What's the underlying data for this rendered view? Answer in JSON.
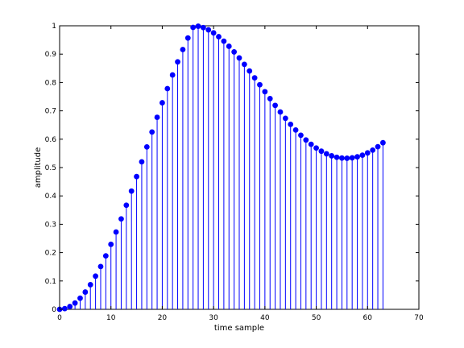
{
  "chart_data": {
    "type": "stem",
    "title": "",
    "xlabel": "time sample",
    "ylabel": "amplitude",
    "xlim": [
      0,
      70
    ],
    "ylim": [
      0,
      1
    ],
    "xticks": [
      0,
      10,
      20,
      30,
      40,
      50,
      60,
      70
    ],
    "yticks": [
      0,
      0.1,
      0.2,
      0.3,
      0.4,
      0.5,
      0.6,
      0.7,
      0.8,
      0.9,
      1
    ],
    "xtick_labels": [
      "0",
      "10",
      "20",
      "30",
      "40",
      "50",
      "60",
      "70"
    ],
    "ytick_labels": [
      "0",
      "0.1",
      "0.2",
      "0.3",
      "0.4",
      "0.5",
      "0.6",
      "0.7",
      "0.8",
      "0.9",
      "1"
    ],
    "grid": false,
    "color": "#0000ff",
    "x": [
      0,
      1,
      2,
      3,
      4,
      5,
      6,
      7,
      8,
      9,
      10,
      11,
      12,
      13,
      14,
      15,
      16,
      17,
      18,
      19,
      20,
      21,
      22,
      23,
      24,
      25,
      26,
      27,
      28,
      29,
      30,
      31,
      32,
      33,
      34,
      35,
      36,
      37,
      38,
      39,
      40,
      41,
      42,
      43,
      44,
      45,
      46,
      47,
      48,
      49,
      50,
      51,
      52,
      53,
      54,
      55,
      56,
      57,
      58,
      59,
      60,
      61,
      62,
      63
    ],
    "y": [
      0,
      0.0025,
      0.0099,
      0.0222,
      0.0393,
      0.0609,
      0.0869,
      0.117,
      0.151,
      0.1885,
      0.2292,
      0.2728,
      0.3189,
      0.3671,
      0.417,
      0.4682,
      0.5203,
      0.5728,
      0.6253,
      0.6773,
      0.7285,
      0.7784,
      0.8266,
      0.8727,
      0.9162,
      0.9569,
      0.9944,
      0.9984,
      0.9936,
      0.9857,
      0.9749,
      0.9615,
      0.9457,
      0.9277,
      0.9079,
      0.8866,
      0.864,
      0.8406,
      0.8165,
      0.792,
      0.7675,
      0.7431,
      0.7192,
      0.696,
      0.6736,
      0.6524,
      0.6325,
      0.614,
      0.5972,
      0.5821,
      0.5689,
      0.5577,
      0.5485,
      0.5413,
      0.5363,
      0.5335,
      0.5328,
      0.5343,
      0.5379,
      0.5437,
      0.5516,
      0.5615,
      0.5736,
      0.5876
    ]
  }
}
